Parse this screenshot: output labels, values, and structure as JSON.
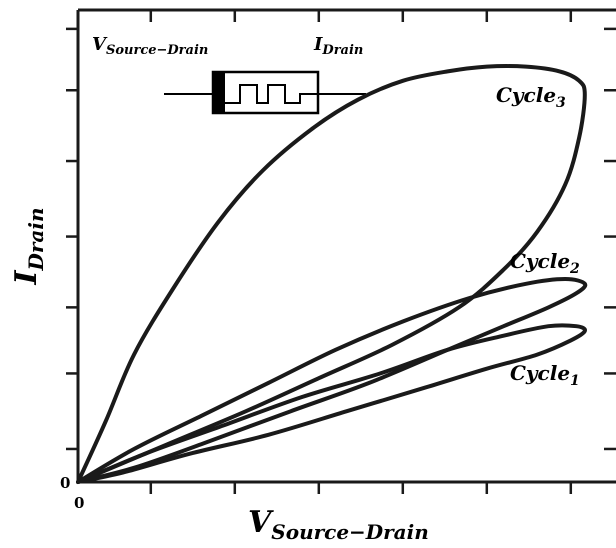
{
  "chart_data": {
    "type": "line",
    "title": "",
    "xlabel_main": "V",
    "xlabel_sub": "Source−Drain",
    "ylabel_main": "I",
    "ylabel_sub": "Drain",
    "x_origin_label": "0",
    "y_origin_label": "0",
    "xlim": [
      0,
      1.0
    ],
    "ylim": [
      0,
      1.0
    ],
    "inset": {
      "left_label_main": "V",
      "left_label_sub": "Source−Drain",
      "right_label_main": "I",
      "right_label_sub": "Drain"
    },
    "series": [
      {
        "name": "Cycle",
        "name_sub": "3",
        "loop_upper": [
          [
            0,
            0
          ],
          [
            0.05,
            0.13
          ],
          [
            0.1,
            0.27
          ],
          [
            0.17,
            0.41
          ],
          [
            0.25,
            0.55
          ],
          [
            0.33,
            0.66
          ],
          [
            0.42,
            0.75
          ],
          [
            0.5,
            0.81
          ],
          [
            0.58,
            0.85
          ],
          [
            0.66,
            0.87
          ],
          [
            0.73,
            0.88
          ],
          [
            0.8,
            0.88
          ],
          [
            0.86,
            0.87
          ],
          [
            0.895,
            0.85
          ],
          [
            0.905,
            0.82
          ]
        ],
        "loop_lower": [
          [
            0.905,
            0.82
          ],
          [
            0.895,
            0.73
          ],
          [
            0.87,
            0.63
          ],
          [
            0.82,
            0.53
          ],
          [
            0.76,
            0.45
          ],
          [
            0.68,
            0.37
          ],
          [
            0.56,
            0.29
          ],
          [
            0.43,
            0.22
          ],
          [
            0.3,
            0.15
          ],
          [
            0.16,
            0.08
          ],
          [
            0,
            0
          ]
        ]
      },
      {
        "name": "Cycle",
        "name_sub": "2",
        "loop_upper": [
          [
            0,
            0
          ],
          [
            0.1,
            0.07
          ],
          [
            0.22,
            0.14
          ],
          [
            0.34,
            0.21
          ],
          [
            0.46,
            0.28
          ],
          [
            0.58,
            0.34
          ],
          [
            0.7,
            0.39
          ],
          [
            0.8,
            0.42
          ],
          [
            0.87,
            0.43
          ],
          [
            0.905,
            0.42
          ]
        ],
        "loop_lower": [
          [
            0.905,
            0.42
          ],
          [
            0.89,
            0.4
          ],
          [
            0.84,
            0.37
          ],
          [
            0.76,
            0.33
          ],
          [
            0.66,
            0.28
          ],
          [
            0.52,
            0.21
          ],
          [
            0.38,
            0.15
          ],
          [
            0.22,
            0.08
          ],
          [
            0.1,
            0.03
          ],
          [
            0,
            0
          ]
        ]
      },
      {
        "name": "Cycle",
        "name_sub": "1",
        "loop_upper": [
          [
            0,
            0
          ],
          [
            0.12,
            0.06
          ],
          [
            0.26,
            0.12
          ],
          [
            0.4,
            0.18
          ],
          [
            0.54,
            0.23
          ],
          [
            0.66,
            0.28
          ],
          [
            0.76,
            0.31
          ],
          [
            0.84,
            0.33
          ],
          [
            0.89,
            0.33
          ],
          [
            0.905,
            0.32
          ]
        ],
        "loop_lower": [
          [
            0.905,
            0.32
          ],
          [
            0.88,
            0.3
          ],
          [
            0.82,
            0.27
          ],
          [
            0.73,
            0.24
          ],
          [
            0.62,
            0.2
          ],
          [
            0.48,
            0.15
          ],
          [
            0.34,
            0.1
          ],
          [
            0.2,
            0.06
          ],
          [
            0.08,
            0.02
          ],
          [
            0,
            0
          ]
        ]
      }
    ],
    "x_ticks": [
      0,
      0.13,
      0.28,
      0.43,
      0.58,
      0.73,
      0.88
    ],
    "y_ticks": [
      0,
      0.07,
      0.23,
      0.37,
      0.52,
      0.68,
      0.83,
      0.96
    ],
    "grid": false
  }
}
